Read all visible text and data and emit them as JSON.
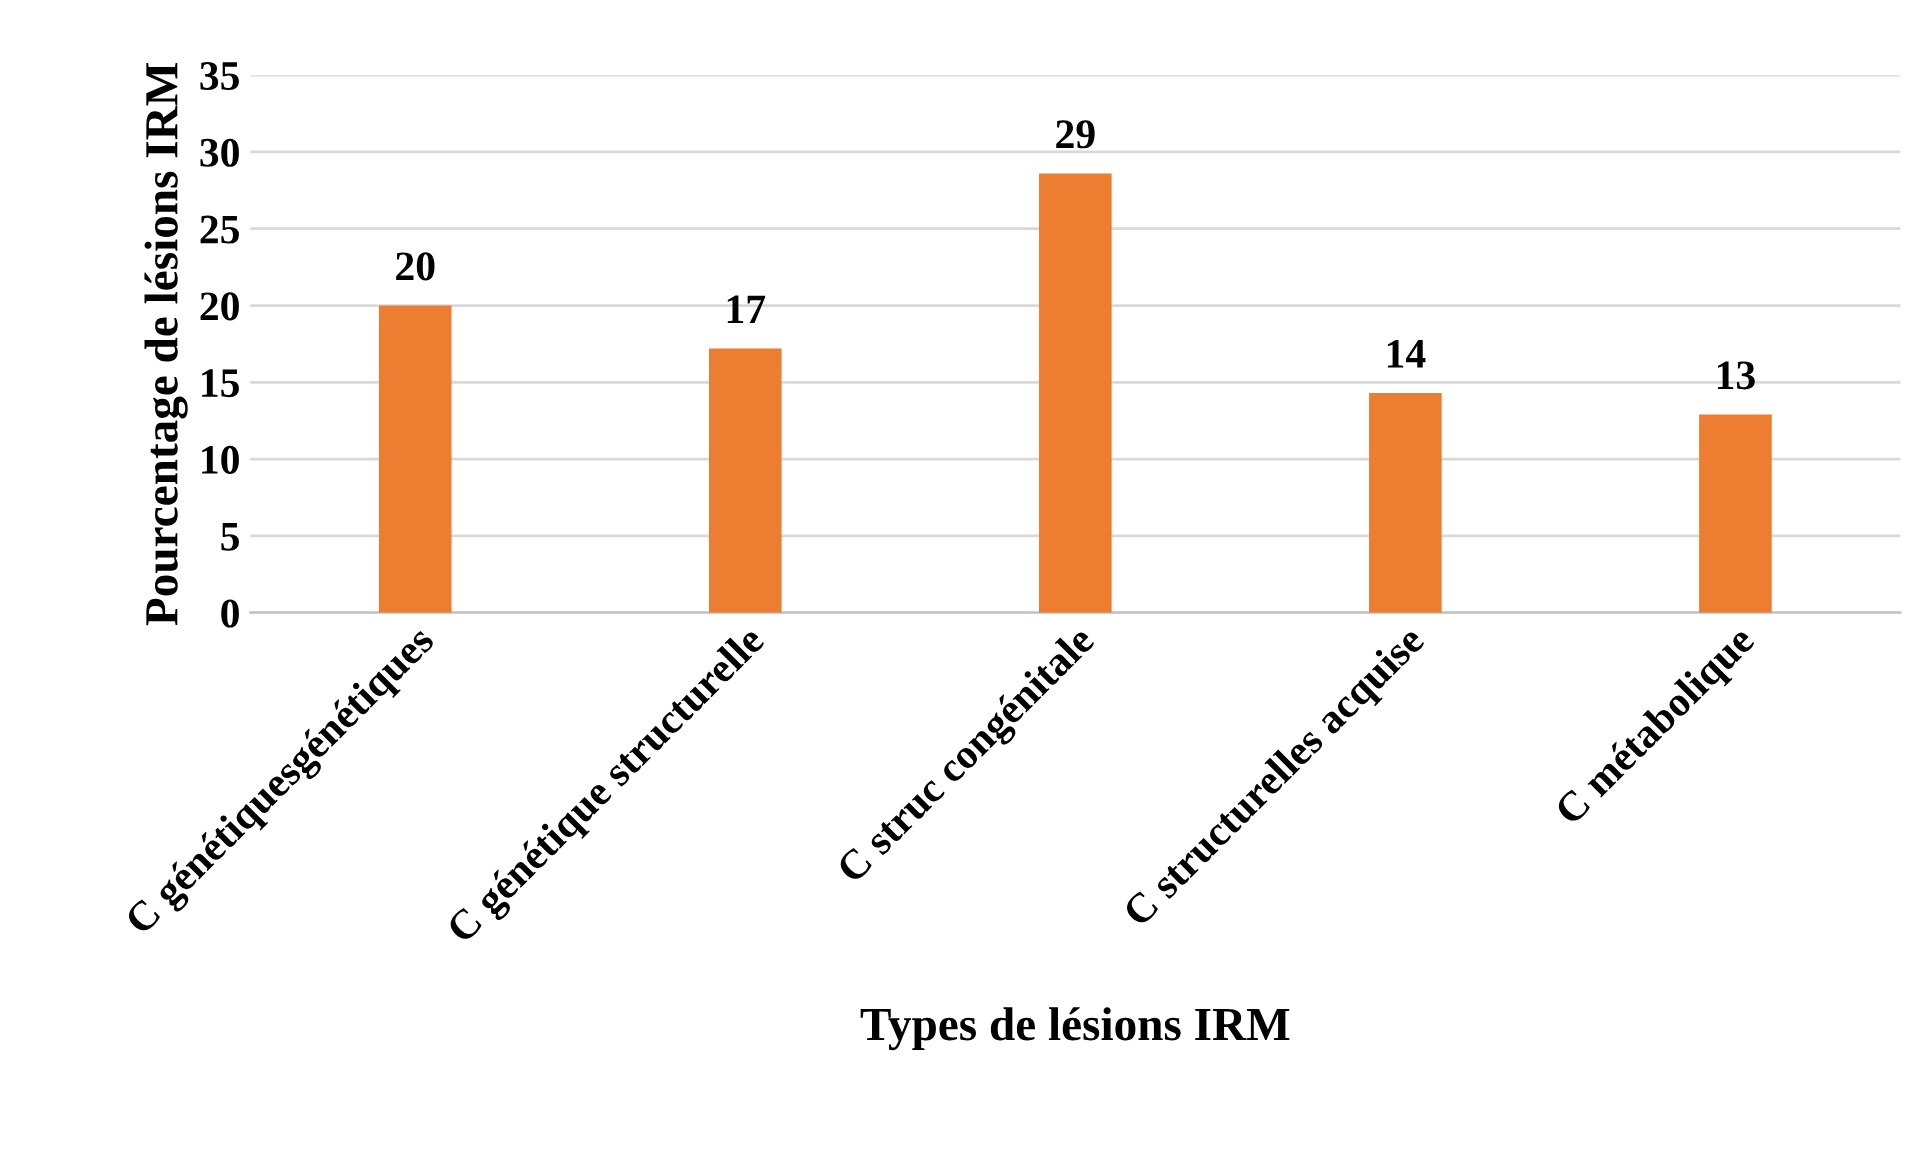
{
  "chart_data": {
    "type": "bar",
    "xlabel": "Types de lésions IRM",
    "ylabel": "Pourcentage de lésions IRM",
    "categories": [
      "C génétiquesgénétiques",
      "C génétique structurelle",
      "C struc congénitale",
      "C structurelles acquise",
      "C métabolique"
    ],
    "values": [
      20,
      17.2,
      28.6,
      14.3,
      12.9
    ],
    "value_labels": [
      "20",
      "17",
      "29",
      "14",
      "13"
    ],
    "color": "#ed7d31",
    "ylim": [
      0,
      35
    ],
    "yticks": [
      0,
      5,
      10,
      15,
      20,
      25,
      30,
      35
    ],
    "grid": "y"
  }
}
